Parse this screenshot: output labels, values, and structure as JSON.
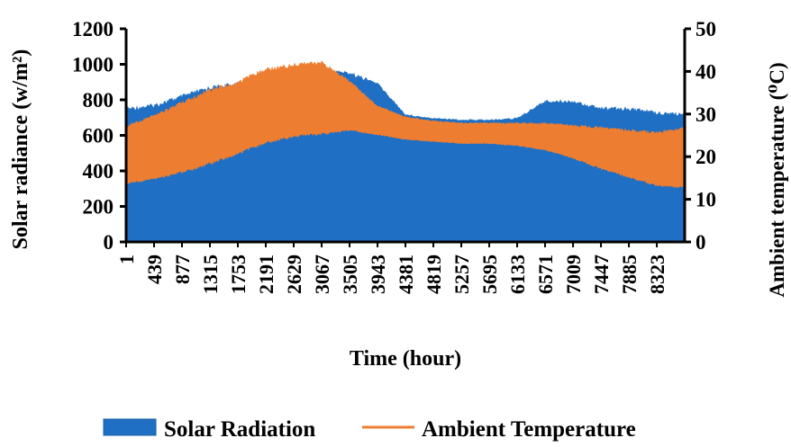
{
  "chart_data": {
    "type": "area",
    "xlabel": "Time (hour)",
    "ylabel_left": "Solar radiance (w/m²)",
    "ylabel_right": "Ambient temperature  (⁰C)",
    "x_range": [
      1,
      8760
    ],
    "x_ticks": [
      "1",
      "439",
      "877",
      "1315",
      "1753",
      "2191",
      "2629",
      "3067",
      "3505",
      "3943",
      "4381",
      "4819",
      "5257",
      "5695",
      "6133",
      "6571",
      "7009",
      "7447",
      "7885",
      "8323"
    ],
    "y_left": {
      "ylim": [
        0,
        1200
      ],
      "ticks": [
        "0",
        "200",
        "400",
        "600",
        "800",
        "1000",
        "1200"
      ]
    },
    "y_right": {
      "ylim": [
        0,
        50
      ],
      "ticks": [
        "0",
        "10",
        "20",
        "30",
        "40",
        "50"
      ]
    },
    "legend": {
      "placement": "bottom",
      "items": [
        {
          "label": "Solar Radiation",
          "color": "#1f6fc4"
        },
        {
          "label": "Ambient Temperature",
          "color": "#ed7d31"
        }
      ]
    },
    "series": [
      {
        "name": "Solar Radiation",
        "axis": "left",
        "color": "#1f6fc4",
        "x": [
          1,
          439,
          877,
          1315,
          1753,
          2191,
          2629,
          3067,
          3505,
          3943,
          4381,
          4819,
          5257,
          5695,
          6133,
          6571,
          7009,
          7447,
          7885,
          8323,
          8760
        ],
        "low": [
          320,
          340,
          380,
          430,
          490,
          550,
          590,
          610,
          620,
          590,
          570,
          560,
          550,
          550,
          540,
          510,
          470,
          420,
          370,
          320,
          300
        ],
        "high": [
          760,
          780,
          830,
          880,
          900,
          920,
          960,
          980,
          960,
          900,
          720,
          700,
          690,
          690,
          700,
          800,
          800,
          760,
          760,
          740,
          730
        ]
      },
      {
        "name": "Ambient Temperature",
        "axis": "right",
        "color": "#ed7d31",
        "x": [
          1,
          439,
          877,
          1315,
          1753,
          2191,
          2629,
          3067,
          3505,
          3943,
          4381,
          4819,
          5257,
          5695,
          6133,
          6571,
          7009,
          7447,
          7885,
          8323,
          8760
        ],
        "low": [
          13.5,
          14.5,
          16,
          18,
          20.5,
          23,
          24.5,
          25,
          26,
          25,
          24,
          23.5,
          23,
          23,
          22.5,
          21.5,
          19.5,
          17,
          15,
          13,
          12.5
        ],
        "high": [
          27.5,
          30,
          33,
          36,
          38,
          41,
          42,
          42.5,
          38,
          32,
          29.5,
          28.5,
          28,
          28,
          28,
          28,
          27.5,
          27,
          26.5,
          26,
          27
        ]
      }
    ]
  }
}
